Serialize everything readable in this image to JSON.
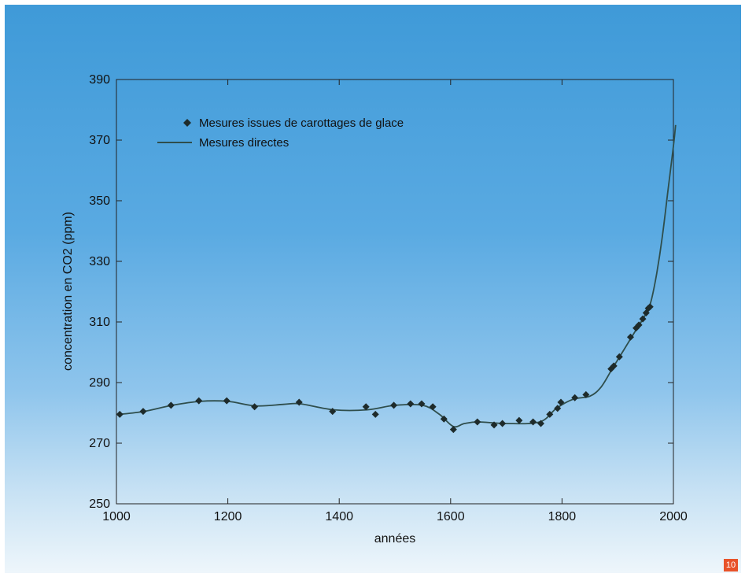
{
  "page": {
    "page_number": "10"
  },
  "colors": {
    "line": "#2f4e4c",
    "marker": "#1e2b2b",
    "axis": "#222222"
  },
  "chart_data": {
    "type": "line",
    "title": "",
    "xlabel": "années",
    "ylabel": "concentration en CO2 (ppm)",
    "xlim": [
      1000,
      2000
    ],
    "ylim": [
      250,
      390
    ],
    "xticks": [
      1000,
      1200,
      1400,
      1600,
      1800,
      2000
    ],
    "yticks": [
      250,
      270,
      290,
      310,
      330,
      350,
      370,
      390
    ],
    "legend_position": "top-left",
    "grid": false,
    "series": [
      {
        "name": "Mesures issues de carottages de glace",
        "marker": "diamond",
        "points": [
          [
            1006,
            279.5
          ],
          [
            1048,
            280.5
          ],
          [
            1098,
            282.5
          ],
          [
            1148,
            284
          ],
          [
            1198,
            284
          ],
          [
            1248,
            282
          ],
          [
            1328,
            283.5
          ],
          [
            1388,
            280.5
          ],
          [
            1448,
            282
          ],
          [
            1465,
            279.5
          ],
          [
            1498,
            282.5
          ],
          [
            1528,
            283
          ],
          [
            1548,
            283
          ],
          [
            1568,
            282
          ],
          [
            1588,
            278
          ],
          [
            1605,
            274.5
          ],
          [
            1648,
            277
          ],
          [
            1678,
            276
          ],
          [
            1693,
            276.5
          ],
          [
            1723,
            277.5
          ],
          [
            1748,
            277
          ],
          [
            1762,
            276.5
          ],
          [
            1778,
            279.5
          ],
          [
            1792,
            281.5
          ],
          [
            1798,
            283.5
          ],
          [
            1823,
            285
          ],
          [
            1843,
            286
          ],
          [
            1888,
            294.5
          ],
          [
            1893,
            295.5
          ],
          [
            1903,
            298.5
          ],
          [
            1923,
            305
          ],
          [
            1933,
            308
          ],
          [
            1938,
            309
          ],
          [
            1945,
            311
          ],
          [
            1951,
            313
          ],
          [
            1955,
            314.5
          ],
          [
            1958,
            315
          ]
        ]
      },
      {
        "name": "Mesures directes",
        "marker": "none",
        "points": [
          [
            1005,
            279.5
          ],
          [
            1050,
            280.5
          ],
          [
            1100,
            282.5
          ],
          [
            1150,
            283.8
          ],
          [
            1200,
            283.8
          ],
          [
            1250,
            282.3
          ],
          [
            1300,
            282.8
          ],
          [
            1330,
            283
          ],
          [
            1390,
            281
          ],
          [
            1450,
            281
          ],
          [
            1500,
            282.5
          ],
          [
            1550,
            282.5
          ],
          [
            1580,
            279.5
          ],
          [
            1605,
            275.5
          ],
          [
            1625,
            276.5
          ],
          [
            1650,
            277
          ],
          [
            1700,
            276.5
          ],
          [
            1760,
            277
          ],
          [
            1790,
            281.5
          ],
          [
            1820,
            284.5
          ],
          [
            1850,
            285.5
          ],
          [
            1870,
            288.5
          ],
          [
            1890,
            294.5
          ],
          [
            1910,
            300.5
          ],
          [
            1930,
            306.5
          ],
          [
            1950,
            312.5
          ],
          [
            1960,
            317
          ],
          [
            1970,
            326
          ],
          [
            1980,
            338
          ],
          [
            1990,
            353
          ],
          [
            2000,
            368
          ],
          [
            2004,
            375
          ]
        ]
      }
    ]
  }
}
